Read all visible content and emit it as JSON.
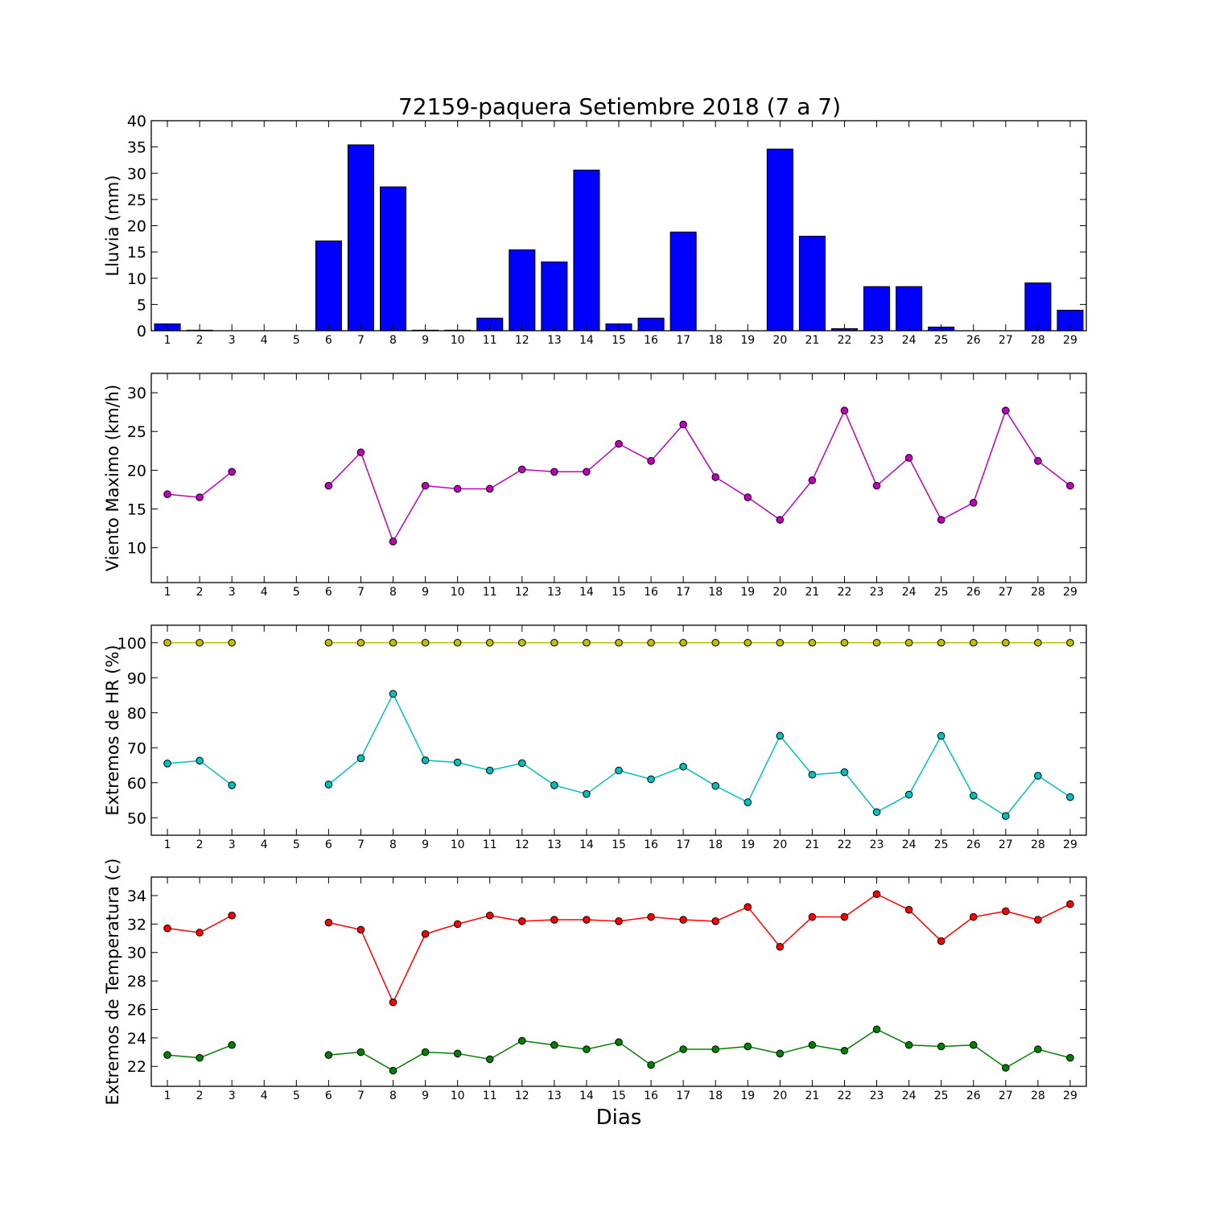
{
  "title": "72159-paquera Setiembre 2018  (7 a 7)",
  "xlabel": "Dias",
  "colors": {
    "rain": "#0000ff",
    "wind": "#bf00bf",
    "hr_max": "#bfbf00",
    "hr_min": "#00bfbf",
    "temp_max": "#ff0000",
    "temp_min": "#008000"
  },
  "chart_data": [
    {
      "type": "bar",
      "ylabel": "Lluvia (mm)",
      "ylim": [
        0,
        40
      ],
      "yticks": [
        0,
        5,
        10,
        15,
        20,
        25,
        30,
        35,
        40
      ],
      "x": [
        1,
        2,
        3,
        4,
        5,
        6,
        7,
        8,
        9,
        10,
        11,
        12,
        13,
        14,
        15,
        16,
        17,
        18,
        19,
        20,
        21,
        22,
        23,
        24,
        25,
        26,
        27,
        28,
        29
      ],
      "series": [
        {
          "values": [
            1.3,
            0.1,
            0,
            0,
            0,
            17.1,
            35.4,
            27.4,
            0.1,
            0.1,
            2.4,
            15.4,
            13.1,
            30.6,
            1.3,
            2.4,
            18.8,
            0,
            0,
            34.6,
            18.0,
            0.4,
            8.4,
            8.4,
            0.7,
            0,
            0,
            9.1,
            3.9
          ]
        }
      ]
    },
    {
      "type": "line",
      "ylabel": "Viento Maximo (km/h)",
      "ylim": [
        5.5,
        32.5
      ],
      "yticks": [
        10,
        15,
        20,
        25,
        30
      ],
      "x": [
        1,
        2,
        3,
        4,
        5,
        6,
        7,
        8,
        9,
        10,
        11,
        12,
        13,
        14,
        15,
        16,
        17,
        18,
        19,
        20,
        21,
        22,
        23,
        24,
        25,
        26,
        27,
        28,
        29
      ],
      "series": [
        {
          "values": [
            16.9,
            16.5,
            19.8,
            null,
            null,
            18.0,
            22.3,
            10.8,
            18.0,
            17.6,
            17.6,
            20.1,
            19.8,
            19.8,
            23.4,
            21.2,
            25.9,
            19.1,
            16.5,
            13.6,
            18.7,
            27.7,
            18.0,
            21.6,
            13.6,
            15.8,
            27.7,
            21.2,
            18.0
          ]
        }
      ]
    },
    {
      "type": "line",
      "ylabel": "Extremos de HR (%)",
      "ylim": [
        45,
        105
      ],
      "yticks": [
        50,
        60,
        70,
        80,
        90,
        100
      ],
      "x": [
        1,
        2,
        3,
        4,
        5,
        6,
        7,
        8,
        9,
        10,
        11,
        12,
        13,
        14,
        15,
        16,
        17,
        18,
        19,
        20,
        21,
        22,
        23,
        24,
        25,
        26,
        27,
        28,
        29
      ],
      "series": [
        {
          "values": [
            100,
            100,
            100,
            null,
            null,
            100,
            100,
            100,
            100,
            100,
            100,
            100,
            100,
            100,
            100,
            100,
            100,
            100,
            100,
            100,
            100,
            100,
            100,
            100,
            100,
            100,
            100,
            100,
            100
          ]
        },
        {
          "values": [
            65.5,
            66.3,
            59.3,
            null,
            null,
            59.5,
            67.0,
            85.4,
            66.4,
            65.8,
            63.5,
            65.6,
            59.3,
            56.8,
            63.5,
            61.0,
            64.6,
            59.1,
            54.4,
            73.4,
            62.3,
            63.0,
            51.6,
            56.6,
            73.4,
            56.3,
            50.5,
            62.0,
            55.9
          ]
        }
      ]
    },
    {
      "type": "line",
      "ylabel": "Extremos de Temperatura (c)",
      "ylim": [
        20.6,
        35.3
      ],
      "yticks": [
        22,
        24,
        26,
        28,
        30,
        32,
        34
      ],
      "x": [
        1,
        2,
        3,
        4,
        5,
        6,
        7,
        8,
        9,
        10,
        11,
        12,
        13,
        14,
        15,
        16,
        17,
        18,
        19,
        20,
        21,
        22,
        23,
        24,
        25,
        26,
        27,
        28,
        29
      ],
      "series": [
        {
          "values": [
            31.7,
            31.4,
            32.6,
            null,
            null,
            32.1,
            31.6,
            26.5,
            31.3,
            32.0,
            32.6,
            32.2,
            32.3,
            32.3,
            32.2,
            32.5,
            32.3,
            32.2,
            33.2,
            30.4,
            32.5,
            32.5,
            34.1,
            33.0,
            30.8,
            32.5,
            32.9,
            32.3,
            33.4
          ]
        },
        {
          "values": [
            22.8,
            22.6,
            23.5,
            null,
            null,
            22.8,
            23.0,
            21.7,
            23.0,
            22.9,
            22.5,
            23.8,
            23.5,
            23.2,
            23.7,
            22.1,
            23.2,
            23.2,
            23.4,
            22.9,
            23.5,
            23.1,
            24.6,
            23.5,
            23.4,
            23.5,
            21.9,
            23.2,
            22.6
          ]
        }
      ]
    }
  ]
}
